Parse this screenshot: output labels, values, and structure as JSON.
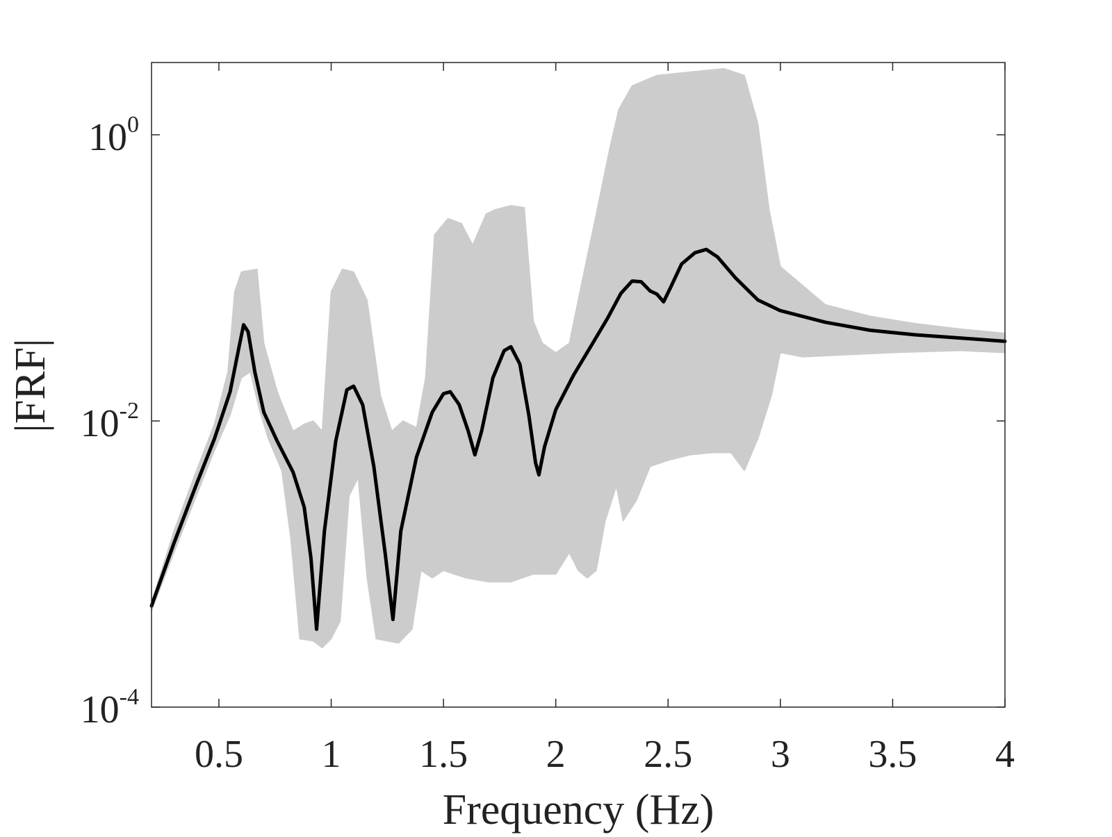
{
  "chart_data": {
    "type": "line",
    "title": "",
    "xlabel": "Frequency (Hz)",
    "ylabel": "|FRF|",
    "xscale": "linear",
    "yscale": "log",
    "xlim": [
      0.2,
      4
    ],
    "ylim": [
      0.0001,
      3.2
    ],
    "x_ticks": [
      0.5,
      1,
      1.5,
      2,
      2.5,
      3,
      3.5,
      4
    ],
    "x_tick_labels": [
      "0.5",
      "1",
      "1.5",
      "2",
      "2.5",
      "3",
      "3.5",
      "4"
    ],
    "y_ticks": [
      {
        "value": 0.0001,
        "base": "10",
        "exp": "-4"
      },
      {
        "value": 0.01,
        "base": "10",
        "exp": "-2"
      },
      {
        "value": 1,
        "base": "10",
        "exp": "0"
      }
    ],
    "grid": false,
    "legend": "none",
    "series": [
      {
        "role": "mean",
        "color": "#000000",
        "points": [
          [
            0.2,
            0.00051
          ],
          [
            0.3,
            0.0014
          ],
          [
            0.4,
            0.0036
          ],
          [
            0.48,
            0.0075
          ],
          [
            0.55,
            0.016
          ],
          [
            0.59,
            0.033
          ],
          [
            0.61,
            0.047
          ],
          [
            0.63,
            0.042
          ],
          [
            0.66,
            0.022
          ],
          [
            0.7,
            0.0115
          ],
          [
            0.76,
            0.0072
          ],
          [
            0.83,
            0.0044
          ],
          [
            0.88,
            0.0025
          ],
          [
            0.91,
            0.0011
          ],
          [
            0.935,
            0.00035
          ],
          [
            0.97,
            0.0017
          ],
          [
            1.02,
            0.0072
          ],
          [
            1.07,
            0.0165
          ],
          [
            1.1,
            0.0175
          ],
          [
            1.14,
            0.013
          ],
          [
            1.19,
            0.0048
          ],
          [
            1.24,
            0.0012
          ],
          [
            1.275,
            0.00041
          ],
          [
            1.31,
            0.0017
          ],
          [
            1.38,
            0.0056
          ],
          [
            1.45,
            0.0115
          ],
          [
            1.5,
            0.0155
          ],
          [
            1.53,
            0.016
          ],
          [
            1.57,
            0.013
          ],
          [
            1.61,
            0.0085
          ],
          [
            1.64,
            0.0058
          ],
          [
            1.67,
            0.0085
          ],
          [
            1.72,
            0.02
          ],
          [
            1.77,
            0.031
          ],
          [
            1.8,
            0.033
          ],
          [
            1.84,
            0.025
          ],
          [
            1.88,
            0.011
          ],
          [
            1.91,
            0.0051
          ],
          [
            1.925,
            0.0042
          ],
          [
            1.95,
            0.0066
          ],
          [
            2.0,
            0.012
          ],
          [
            2.08,
            0.021
          ],
          [
            2.16,
            0.034
          ],
          [
            2.23,
            0.052
          ],
          [
            2.29,
            0.078
          ],
          [
            2.34,
            0.095
          ],
          [
            2.38,
            0.094
          ],
          [
            2.42,
            0.081
          ],
          [
            2.45,
            0.077
          ],
          [
            2.48,
            0.068
          ],
          [
            2.51,
            0.085
          ],
          [
            2.56,
            0.125
          ],
          [
            2.62,
            0.15
          ],
          [
            2.67,
            0.158
          ],
          [
            2.72,
            0.14
          ],
          [
            2.8,
            0.1
          ],
          [
            2.9,
            0.07
          ],
          [
            3.0,
            0.059
          ],
          [
            3.2,
            0.049
          ],
          [
            3.4,
            0.043
          ],
          [
            3.6,
            0.04
          ],
          [
            3.8,
            0.038
          ],
          [
            4.0,
            0.036
          ]
        ]
      }
    ],
    "samples_envelope": {
      "color": "#cccccc",
      "count": 600,
      "upper": [
        [
          0.2,
          0.00054
        ],
        [
          0.3,
          0.0017
        ],
        [
          0.4,
          0.0045
        ],
        [
          0.48,
          0.0095
        ],
        [
          0.54,
          0.022
        ],
        [
          0.57,
          0.08
        ],
        [
          0.6,
          0.11
        ],
        [
          0.67,
          0.115
        ],
        [
          0.7,
          0.035
        ],
        [
          0.76,
          0.016
        ],
        [
          0.83,
          0.0085
        ],
        [
          0.88,
          0.0095
        ],
        [
          0.92,
          0.01
        ],
        [
          0.96,
          0.0085
        ],
        [
          1.0,
          0.08
        ],
        [
          1.05,
          0.115
        ],
        [
          1.1,
          0.11
        ],
        [
          1.16,
          0.07
        ],
        [
          1.22,
          0.015
        ],
        [
          1.27,
          0.0085
        ],
        [
          1.32,
          0.01
        ],
        [
          1.38,
          0.009
        ],
        [
          1.42,
          0.02
        ],
        [
          1.46,
          0.2
        ],
        [
          1.52,
          0.26
        ],
        [
          1.58,
          0.24
        ],
        [
          1.63,
          0.17
        ],
        [
          1.69,
          0.28
        ],
        [
          1.73,
          0.3
        ],
        [
          1.8,
          0.32
        ],
        [
          1.86,
          0.31
        ],
        [
          1.9,
          0.05
        ],
        [
          1.94,
          0.035
        ],
        [
          2.0,
          0.03
        ],
        [
          2.06,
          0.035
        ],
        [
          2.12,
          0.1
        ],
        [
          2.18,
          0.28
        ],
        [
          2.24,
          0.8
        ],
        [
          2.28,
          1.5
        ],
        [
          2.34,
          2.2
        ],
        [
          2.45,
          2.6
        ],
        [
          2.55,
          2.7
        ],
        [
          2.65,
          2.8
        ],
        [
          2.75,
          2.9
        ],
        [
          2.84,
          2.6
        ],
        [
          2.9,
          1.2
        ],
        [
          2.95,
          0.3
        ],
        [
          3.0,
          0.12
        ],
        [
          3.2,
          0.065
        ],
        [
          3.4,
          0.054
        ],
        [
          3.6,
          0.048
        ],
        [
          3.8,
          0.044
        ],
        [
          4.0,
          0.041
        ]
      ],
      "lower": [
        [
          0.2,
          0.00047
        ],
        [
          0.3,
          0.0012
        ],
        [
          0.4,
          0.003
        ],
        [
          0.48,
          0.0062
        ],
        [
          0.55,
          0.011
        ],
        [
          0.6,
          0.02
        ],
        [
          0.64,
          0.022
        ],
        [
          0.68,
          0.012
        ],
        [
          0.72,
          0.0075
        ],
        [
          0.78,
          0.0045
        ],
        [
          0.82,
          0.0015
        ],
        [
          0.86,
          0.0003
        ],
        [
          0.92,
          0.00029
        ],
        [
          0.96,
          0.00026
        ],
        [
          1.0,
          0.0003
        ],
        [
          1.04,
          0.0004
        ],
        [
          1.08,
          0.003
        ],
        [
          1.12,
          0.004
        ],
        [
          1.16,
          0.0008
        ],
        [
          1.2,
          0.0003
        ],
        [
          1.3,
          0.00028
        ],
        [
          1.36,
          0.00035
        ],
        [
          1.4,
          0.0009
        ],
        [
          1.45,
          0.0008
        ],
        [
          1.5,
          0.0009
        ],
        [
          1.6,
          0.0008
        ],
        [
          1.7,
          0.00075
        ],
        [
          1.8,
          0.00075
        ],
        [
          1.9,
          0.00085
        ],
        [
          2.0,
          0.00085
        ],
        [
          2.06,
          0.0012
        ],
        [
          2.1,
          0.0009
        ],
        [
          2.14,
          0.0008
        ],
        [
          2.18,
          0.0009
        ],
        [
          2.22,
          0.002
        ],
        [
          2.27,
          0.0035
        ],
        [
          2.3,
          0.002
        ],
        [
          2.36,
          0.0028
        ],
        [
          2.42,
          0.0048
        ],
        [
          2.5,
          0.0053
        ],
        [
          2.6,
          0.0058
        ],
        [
          2.7,
          0.006
        ],
        [
          2.78,
          0.006
        ],
        [
          2.84,
          0.0045
        ],
        [
          2.9,
          0.0075
        ],
        [
          2.96,
          0.015
        ],
        [
          3.0,
          0.03
        ],
        [
          3.1,
          0.028
        ],
        [
          3.3,
          0.029
        ],
        [
          3.5,
          0.03
        ],
        [
          3.8,
          0.031
        ],
        [
          4.0,
          0.03
        ]
      ]
    }
  }
}
